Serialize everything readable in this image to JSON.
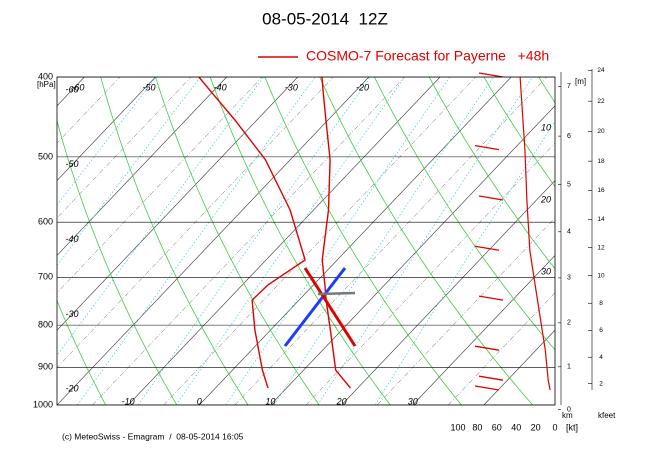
{
  "chart_data": {
    "type": "emagram",
    "title": "08-05-2014  12Z",
    "footer": "(c) MeteoSwiss - Emagram  /  08-05-2014 16:05",
    "ylabel": "[hPa]",
    "ylim": [
      400,
      1000
    ],
    "yticks": [
      400,
      500,
      600,
      700,
      800,
      900,
      1000
    ],
    "log_y": true,
    "xlim": [
      -20,
      50
    ],
    "xticks": [
      -10,
      0,
      10,
      20,
      30
    ],
    "top_labels": [
      -60,
      -50,
      -40,
      -30,
      -20
    ],
    "left_labels": [
      -60,
      -50,
      -40,
      -30,
      -20
    ],
    "right_labels": [
      10,
      20,
      30
    ],
    "series": [
      {
        "name": "COSMO-7 Forecast for Payerne   +48h",
        "color": "#e00000",
        "pressure": [
          954,
          907,
          811,
          746,
          715,
          667,
          580,
          504,
          451,
          415,
          400
        ],
        "temperature": [
          19.0,
          14.5,
          8.4,
          3.8,
          1.6,
          -2.1,
          -7.9,
          -14.4,
          -20.3,
          -24.7,
          -26.6
        ],
        "dewpoint": [
          7.4,
          4.2,
          -2.2,
          -6.6,
          -6.4,
          -4.5,
          -13.3,
          -23.5,
          -33.1,
          -40.6,
          -43.9
        ]
      }
    ],
    "wind": {
      "color": "#e00000",
      "pressure": [
        400,
        490,
        564,
        649,
        746,
        858,
        933,
        959
      ],
      "speed": [
        36,
        31,
        29,
        26,
        18,
        10,
        7,
        5
      ]
    },
    "wind_xlim": [
      0,
      100
    ],
    "wind_ticks": [
      100,
      80,
      60,
      40,
      20,
      0
    ],
    "wind_label": "[kt]",
    "km_label": "km",
    "km_unit": "[m]",
    "km_ticks": [
      0,
      1,
      2,
      3,
      4,
      5,
      6,
      7
    ],
    "kfeet_label": "kfeet",
    "kfeet_ticks": [
      2,
      4,
      6,
      8,
      10,
      12,
      14,
      16,
      18,
      20,
      22,
      24
    ]
  }
}
